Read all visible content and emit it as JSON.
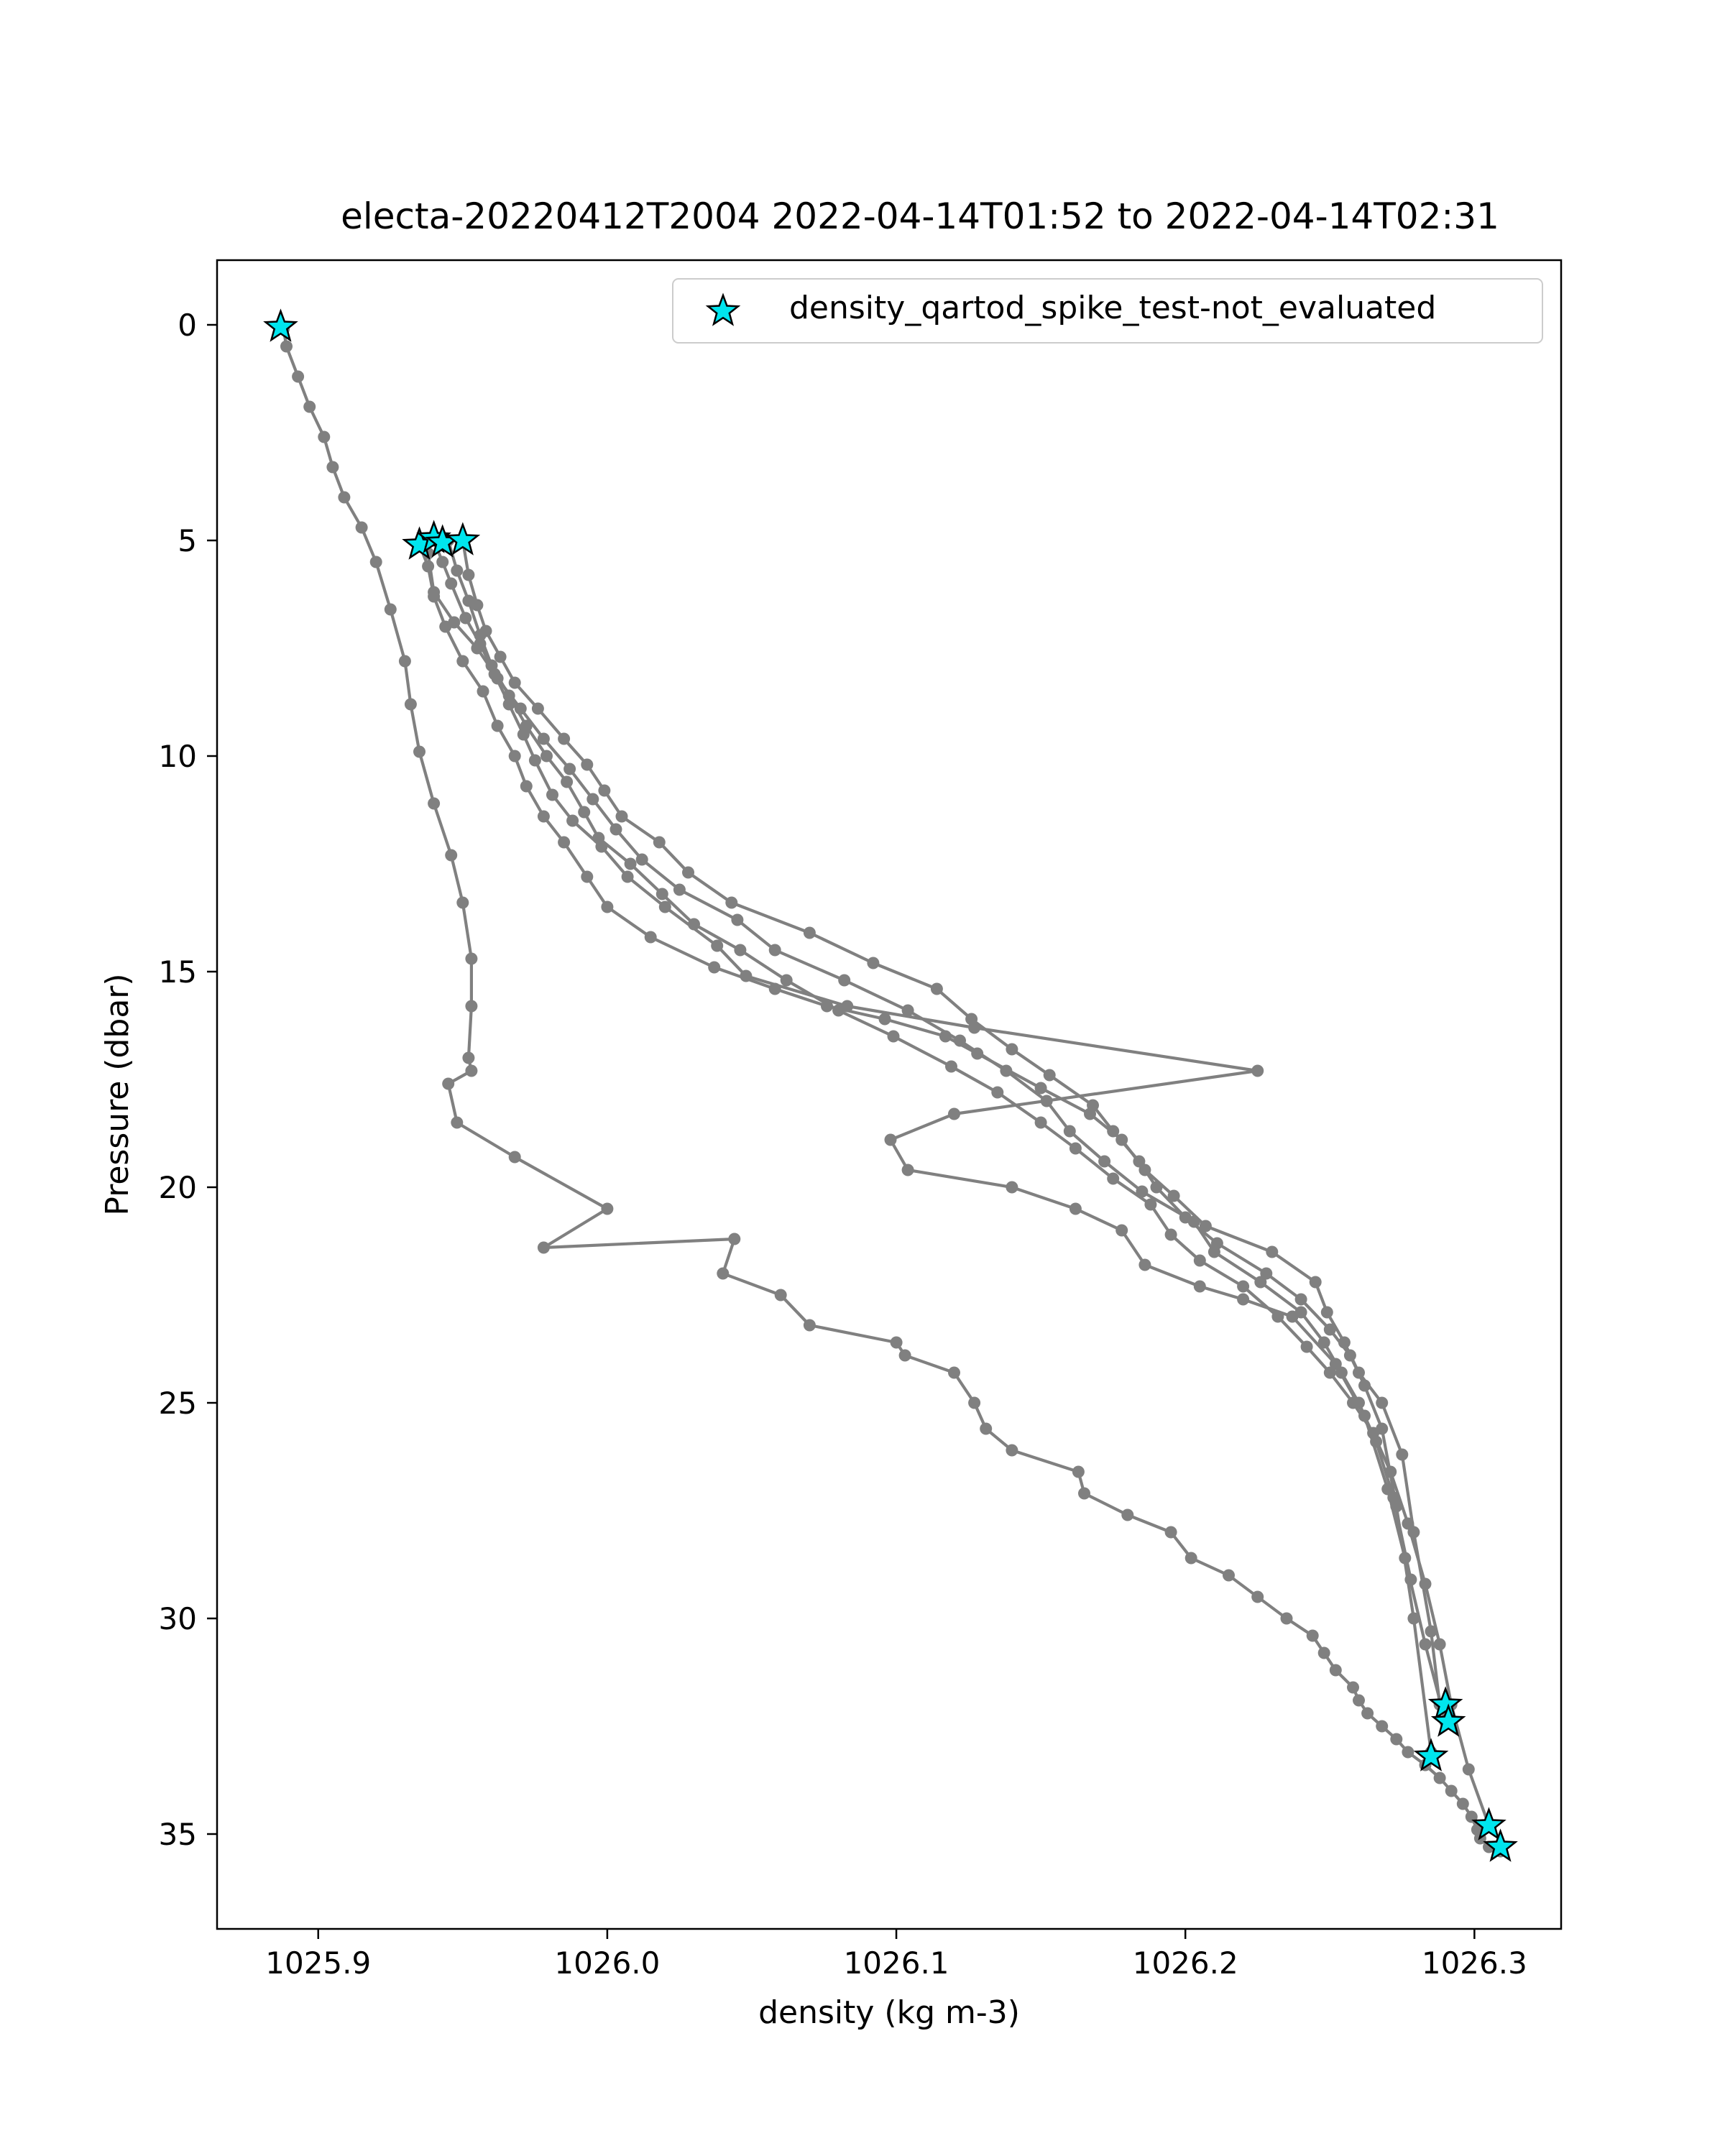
{
  "chart_data": {
    "type": "line",
    "title": "electa-20220412T2004 2022-04-14T01:52 to 2022-04-14T02:31",
    "xlabel": "density (kg m-3)",
    "ylabel": "Pressure (dbar)",
    "xlim": [
      1025.865,
      1026.33
    ],
    "ylim": [
      37.2,
      -1.5
    ],
    "y_inverted": true,
    "grid": false,
    "legend_position": "top-right",
    "x_ticks": [
      {
        "value": 1025.9,
        "label": "1025.9"
      },
      {
        "value": 1026.0,
        "label": "1026.0"
      },
      {
        "value": 1026.1,
        "label": "1026.1"
      },
      {
        "value": 1026.2,
        "label": "1026.2"
      },
      {
        "value": 1026.3,
        "label": "1026.3"
      }
    ],
    "y_ticks": [
      {
        "value": 0,
        "label": "0"
      },
      {
        "value": 5,
        "label": "5"
      },
      {
        "value": 10,
        "label": "10"
      },
      {
        "value": 15,
        "label": "15"
      },
      {
        "value": 20,
        "label": "20"
      },
      {
        "value": 25,
        "label": "25"
      },
      {
        "value": 30,
        "label": "30"
      },
      {
        "value": 35,
        "label": "35"
      }
    ],
    "series": [
      {
        "color": "#808080",
        "marker": "circle",
        "x": [
          1025.888,
          1025.889,
          1025.893,
          1025.897,
          1025.902,
          1025.905,
          1025.909,
          1025.915,
          1025.92,
          1025.925,
          1025.93,
          1025.932,
          1025.935,
          1025.94,
          1025.946,
          1025.95,
          1025.953,
          1025.953,
          1025.952,
          1025.953,
          1025.945,
          1025.948,
          1025.968,
          1026.0,
          1025.978,
          1026.044,
          1026.04,
          1026.06,
          1026.07,
          1026.1,
          1026.103,
          1026.12,
          1026.127,
          1026.131,
          1026.14,
          1026.163,
          1026.165,
          1026.18,
          1026.195,
          1026.202,
          1026.215,
          1026.225,
          1026.235,
          1026.244,
          1026.248,
          1026.252,
          1026.258,
          1026.26,
          1026.263,
          1026.268,
          1026.273,
          1026.277,
          1026.283,
          1026.288,
          1026.292,
          1026.296,
          1026.299,
          1026.301,
          1026.302,
          1026.305,
          1026.309
        ],
        "y": [
          0.1,
          0.5,
          1.2,
          1.9,
          2.6,
          3.3,
          4.0,
          4.7,
          5.5,
          6.6,
          7.8,
          8.8,
          9.9,
          11.1,
          12.3,
          13.4,
          14.7,
          15.8,
          17.0,
          17.3,
          17.6,
          18.5,
          19.3,
          20.5,
          21.4,
          21.2,
          22.0,
          22.5,
          23.2,
          23.6,
          23.9,
          24.3,
          25.0,
          25.6,
          26.1,
          26.6,
          27.1,
          27.6,
          28.0,
          28.6,
          29.0,
          29.5,
          30.0,
          30.4,
          30.8,
          31.2,
          31.6,
          31.9,
          32.2,
          32.5,
          32.8,
          33.1,
          33.4,
          33.7,
          34.0,
          34.3,
          34.6,
          34.9,
          35.1,
          35.3,
          35.4
        ]
      },
      {
        "color": "#808080",
        "marker": "circle",
        "x": [
          1025.935,
          1025.938,
          1025.94,
          1025.944,
          1025.95,
          1025.957,
          1025.962,
          1025.968,
          1025.972,
          1025.978,
          1025.985,
          1025.993,
          1026.0,
          1026.015,
          1026.037,
          1026.058,
          1026.076,
          1026.096,
          1026.117,
          1026.128,
          1026.15,
          1026.167,
          1026.178,
          1026.186,
          1026.196,
          1026.207,
          1026.23,
          1026.245,
          1026.249,
          1026.255,
          1026.26,
          1026.268,
          1026.275,
          1026.279,
          1026.285,
          1026.288
        ],
        "y": [
          5.1,
          5.6,
          6.3,
          7.0,
          7.8,
          8.5,
          9.3,
          10.0,
          10.7,
          11.4,
          12.0,
          12.8,
          13.5,
          14.2,
          14.9,
          15.4,
          15.8,
          16.1,
          16.5,
          16.9,
          17.7,
          18.3,
          18.9,
          19.6,
          20.2,
          20.9,
          21.5,
          22.2,
          22.9,
          23.6,
          24.3,
          25.0,
          26.2,
          28.0,
          30.3,
          32.0
        ]
      },
      {
        "color": "#808080",
        "marker": "circle",
        "x": [
          1025.94,
          1025.943,
          1025.946,
          1025.951,
          1025.956,
          1025.961,
          1025.966,
          1025.971,
          1025.975,
          1025.981,
          1025.988,
          1025.998,
          1026.007,
          1026.02,
          1026.038,
          1026.048,
          1026.083,
          1026.127,
          1026.225,
          1026.12,
          1026.098,
          1026.104,
          1026.14,
          1026.162,
          1026.178,
          1026.186,
          1026.205,
          1026.22,
          1026.237,
          1026.252,
          1026.262,
          1026.27,
          1026.276,
          1026.283,
          1026.29
        ],
        "y": [
          5.0,
          5.5,
          6.0,
          6.8,
          7.4,
          8.1,
          8.8,
          9.5,
          10.1,
          10.9,
          11.5,
          12.1,
          12.8,
          13.5,
          14.4,
          15.1,
          15.8,
          16.3,
          17.3,
          18.3,
          18.9,
          19.6,
          20.0,
          20.5,
          21.0,
          21.8,
          22.3,
          22.6,
          23.0,
          24.1,
          25.3,
          27.0,
          28.6,
          30.6,
          32.4
        ]
      },
      {
        "color": "#808080",
        "marker": "circle",
        "x": [
          1025.95,
          1025.952,
          1025.955,
          1025.958,
          1025.963,
          1025.968,
          1025.976,
          1025.985,
          1025.993,
          1025.999,
          1026.005,
          1026.018,
          1026.028,
          1026.043,
          1026.07,
          1026.092,
          1026.114,
          1026.126,
          1026.14,
          1026.153,
          1026.168,
          1026.175,
          1026.184,
          1026.19,
          1026.2,
          1026.211,
          1026.228,
          1026.24,
          1026.25,
          1026.257,
          1026.262,
          1026.268,
          1026.273,
          1026.279,
          1026.285
        ],
        "y": [
          5.0,
          5.8,
          6.5,
          7.1,
          7.7,
          8.3,
          8.9,
          9.6,
          10.2,
          10.8,
          11.4,
          12.0,
          12.7,
          13.4,
          14.1,
          14.8,
          15.4,
          16.1,
          16.8,
          17.4,
          18.1,
          18.7,
          19.4,
          20.0,
          20.7,
          21.3,
          22.0,
          22.6,
          23.3,
          23.9,
          24.6,
          25.6,
          27.4,
          30.0,
          33.1
        ]
      },
      {
        "color": "#808080",
        "marker": "circle",
        "x": [
          1025.945,
          1025.948,
          1025.952,
          1025.956,
          1025.96,
          1025.966,
          1025.972,
          1025.979,
          1025.986,
          1025.992,
          1025.997,
          1026.008,
          1026.019,
          1026.03,
          1026.046,
          1026.062,
          1026.08,
          1026.099,
          1026.119,
          1026.135,
          1026.15,
          1026.162,
          1026.175,
          1026.188,
          1026.195,
          1026.205,
          1026.22,
          1026.232,
          1026.242,
          1026.25,
          1026.258,
          1026.265,
          1026.271,
          1026.277,
          1026.283,
          1026.288,
          1026.292,
          1026.298,
          1026.305
        ],
        "y": [
          5.0,
          5.7,
          6.4,
          7.2,
          7.9,
          8.6,
          9.3,
          10.0,
          10.6,
          11.3,
          11.9,
          12.5,
          13.2,
          13.9,
          14.5,
          15.2,
          15.9,
          16.5,
          17.2,
          17.8,
          18.5,
          19.1,
          19.8,
          20.4,
          21.1,
          21.7,
          22.3,
          23.0,
          23.7,
          24.3,
          25.0,
          25.7,
          26.6,
          27.8,
          29.2,
          30.6,
          32.0,
          33.5,
          34.8
        ]
      },
      {
        "color": "#808080",
        "marker": "circle",
        "x": [
          1025.938,
          1025.94,
          1025.947,
          1025.955,
          1025.962,
          1025.97,
          1025.978,
          1025.987,
          1025.995,
          1026.003,
          1026.012,
          1026.025,
          1026.045,
          1026.058,
          1026.082,
          1026.104,
          1026.122,
          1026.138,
          1026.152,
          1026.16,
          1026.172,
          1026.185,
          1026.203,
          1026.21,
          1026.226,
          1026.24,
          1026.248,
          1026.254,
          1026.26,
          1026.266,
          1026.272,
          1026.278
        ],
        "y": [
          5.3,
          6.2,
          6.9,
          7.5,
          8.2,
          8.9,
          9.6,
          10.3,
          11.0,
          11.7,
          12.4,
          13.1,
          13.8,
          14.5,
          15.2,
          15.9,
          16.6,
          17.3,
          18.0,
          18.7,
          19.4,
          20.1,
          20.8,
          21.5,
          22.2,
          22.9,
          23.6,
          24.3,
          25.0,
          25.9,
          27.2,
          29.1
        ]
      }
    ],
    "scatter": {
      "name": "density_qartod_spike_test-not_evaluated",
      "marker": "star",
      "color": "#00e5ee",
      "edgecolor": "#000000",
      "x": [
        1025.887,
        1025.935,
        1025.94,
        1025.943,
        1025.95,
        1026.29,
        1026.291,
        1026.285,
        1026.305,
        1026.309
      ],
      "y": [
        0.05,
        5.1,
        4.95,
        5.05,
        5.0,
        32.0,
        32.4,
        33.2,
        34.8,
        35.3
      ]
    }
  }
}
